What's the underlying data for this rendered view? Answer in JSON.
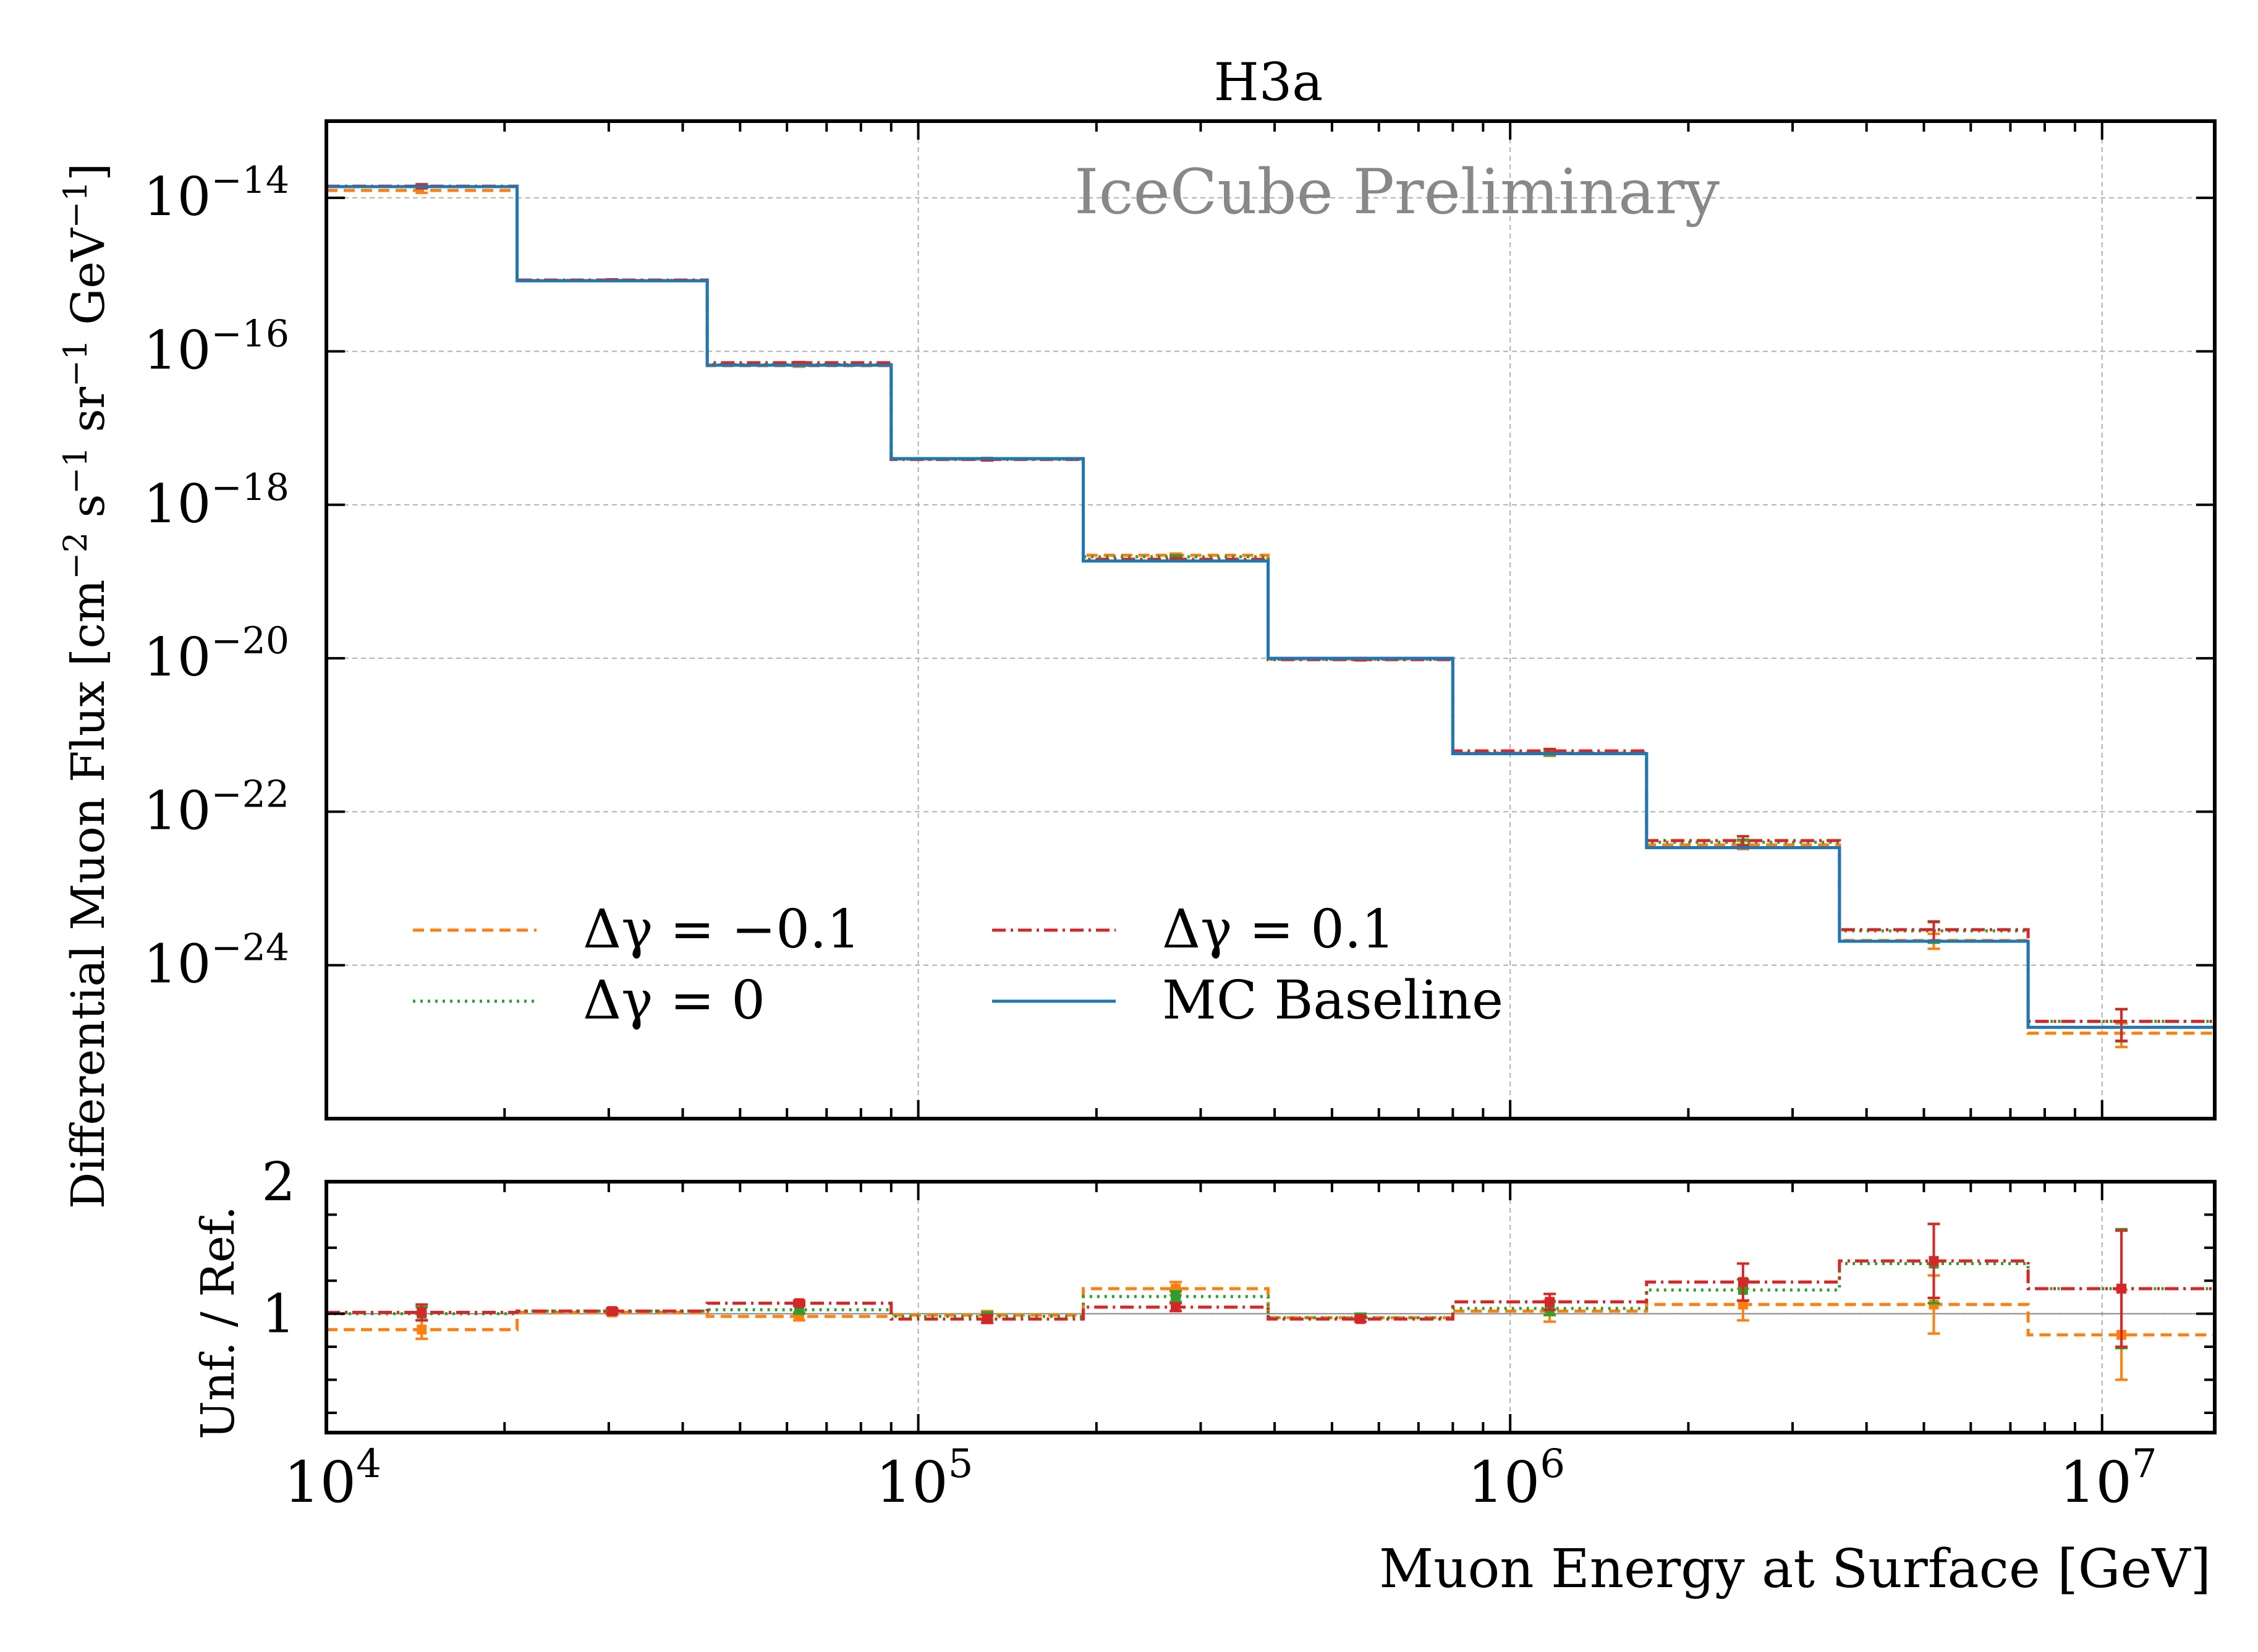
{
  "chart_data": {
    "type": "step",
    "title": "H3a",
    "watermark": "IceCube Preliminary",
    "top_panel": {
      "ylabel": "Differential Muon Flux [cm^-2 s^-1 sr^-1 GeV^-1]",
      "yscale": "log",
      "ylim": [
        1e-26,
        1e-13
      ],
      "ytick_labels": [
        {
          "value": 1e-14,
          "base": "10",
          "exp": "−14"
        },
        {
          "value": 1e-16,
          "base": "10",
          "exp": "−16"
        },
        {
          "value": 1e-18,
          "base": "10",
          "exp": "−18"
        },
        {
          "value": 1e-20,
          "base": "10",
          "exp": "−20"
        },
        {
          "value": 1e-22,
          "base": "10",
          "exp": "−22"
        },
        {
          "value": 1e-24,
          "base": "10",
          "exp": "−24"
        }
      ]
    },
    "bottom_panel": {
      "ylabel": "Unf. / Ref.",
      "ylim": [
        0.1,
        2.0
      ],
      "ytick_labels": [
        {
          "value": 1,
          "label": "1"
        },
        {
          "value": 2,
          "label": "2"
        }
      ],
      "reference_line": 1.0
    },
    "x": {
      "xlabel": "Muon Energy at Surface [GeV]",
      "xscale": "log",
      "xlim": [
        10000,
        15500000
      ],
      "xtick_labels": [
        {
          "value": 10000,
          "base": "10",
          "exp": "4"
        },
        {
          "value": 100000,
          "base": "10",
          "exp": "5"
        },
        {
          "value": 1000000,
          "base": "10",
          "exp": "6"
        },
        {
          "value": 10000000,
          "base": "10",
          "exp": "7"
        }
      ],
      "bin_edges": [
        10000,
        21000,
        44000,
        90000,
        190000,
        390000,
        800000,
        1700000,
        3600000,
        7500000,
        15500000
      ]
    },
    "grid": true,
    "legend": {
      "placement": "lower-left",
      "columns": 2,
      "entries": [
        {
          "series": "dgm",
          "text": "Δγ = −0.1"
        },
        {
          "series": "dg0",
          "text": "Δγ = 0"
        },
        {
          "series": "dgp",
          "text": "Δγ = 0.1"
        },
        {
          "series": "mc",
          "text": "MC Baseline"
        }
      ]
    },
    "series": [
      {
        "id": "mc",
        "name": "MC Baseline",
        "color": "#1f77b4",
        "linestyle": "solid",
        "values": [
          1.4e-14,
          8.3e-16,
          6.6e-17,
          4e-18,
          1.85e-19,
          1e-20,
          5.7e-22,
          3.4e-23,
          2.05e-24,
          1.55e-25
        ],
        "ratio": [
          1.0,
          1.0,
          1.0,
          1.0,
          1.0,
          1.0,
          1.0,
          1.0,
          1.0,
          1.0
        ]
      },
      {
        "id": "dgm",
        "name": "Δγ = −0.1",
        "color": "#ff7f0e",
        "linestyle": "dashed",
        "values": [
          1.25e-14,
          8.4e-16,
          6.5e-17,
          3.95e-18,
          2.2e-19,
          9.8e-21,
          5.8e-22,
          3.7e-23,
          2.1e-24,
          1.3e-25
        ],
        "ratio": [
          0.88,
          1.01,
          0.98,
          0.99,
          1.19,
          0.97,
          1.02,
          1.07,
          1.07,
          0.84
        ],
        "errors": [
          0.07,
          0.02,
          0.03,
          0.03,
          0.05,
          0.03,
          0.08,
          0.12,
          0.22,
          0.34
        ]
      },
      {
        "id": "dg0",
        "name": "Δγ = 0",
        "color": "#2ca02c",
        "linestyle": "dotted",
        "values": [
          1.4e-14,
          8.4e-16,
          6.7e-17,
          3.95e-18,
          2.1e-19,
          9.7e-21,
          5.8e-22,
          4e-23,
          2.8e-24,
          1.85e-25
        ],
        "ratio": [
          1.0,
          1.02,
          1.03,
          0.98,
          1.13,
          0.97,
          1.04,
          1.18,
          1.38,
          1.19
        ],
        "errors": [
          0.05,
          0.02,
          0.03,
          0.03,
          0.04,
          0.03,
          0.05,
          0.08,
          0.3,
          0.45
        ]
      },
      {
        "id": "dgp",
        "name": "Δγ = 0.1",
        "color": "#d62728",
        "linestyle": "dashdot",
        "values": [
          1.42e-14,
          8.5e-16,
          7.1e-17,
          3.9e-18,
          1.95e-19,
          9.6e-21,
          6.2e-22,
          4.2e-23,
          2.9e-24,
          1.85e-25
        ],
        "ratio": [
          1.01,
          1.02,
          1.08,
          0.96,
          1.05,
          0.96,
          1.09,
          1.24,
          1.4,
          1.19
        ],
        "errors": [
          0.06,
          0.02,
          0.02,
          0.03,
          0.03,
          0.02,
          0.06,
          0.14,
          0.28,
          0.44
        ]
      }
    ]
  }
}
